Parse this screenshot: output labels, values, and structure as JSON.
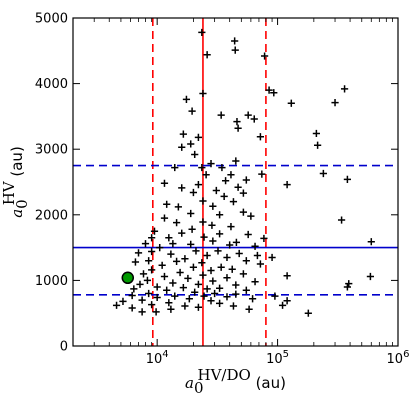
{
  "chart_data": {
    "type": "scatter",
    "title": "",
    "xlabel": {
      "symbol": "a",
      "subscript": "0",
      "superscript": "HV/DO",
      "unit": "(au)"
    },
    "ylabel": {
      "symbol": "a",
      "subscript": "0",
      "superscript": "HV",
      "unit": "(au)"
    },
    "x_scale": "log",
    "xlim": [
      2000,
      1000000
    ],
    "ylim": [
      0,
      5000
    ],
    "x_tick_values": [
      10000,
      100000,
      1000000
    ],
    "x_tick_labels": [
      {
        "base": "10",
        "exp": "4"
      },
      {
        "base": "10",
        "exp": "5"
      },
      {
        "base": "10",
        "exp": "6"
      }
    ],
    "y_ticks": [
      0,
      1000,
      2000,
      3000,
      4000,
      5000
    ],
    "y_tick_labels": [
      "0",
      "1000",
      "2000",
      "3000",
      "4000",
      "5000"
    ],
    "grid": false,
    "colors": {
      "points": "#000000",
      "vertical_lines": "#ff0000",
      "horizontal_lines": "#0000cc",
      "highlight_fill": "#009900",
      "highlight_edge": "#000000"
    },
    "reference_lines": {
      "vertical": [
        {
          "x": 9200,
          "style": "dashed"
        },
        {
          "x": 24000,
          "style": "solid"
        },
        {
          "x": 80000,
          "style": "dashed"
        }
      ],
      "horizontal": [
        {
          "y": 780,
          "style": "dashed"
        },
        {
          "y": 1500,
          "style": "solid"
        },
        {
          "y": 2750,
          "style": "dashed"
        }
      ]
    },
    "highlight_point": {
      "x": 5700,
      "y": 1040
    },
    "points": [
      [
        23500,
        4780
      ],
      [
        44000,
        4650
      ],
      [
        26000,
        4440
      ],
      [
        78000,
        4420
      ],
      [
        85000,
        3900
      ],
      [
        93000,
        3860
      ],
      [
        44500,
        4510
      ],
      [
        17500,
        3760
      ],
      [
        19500,
        3580
      ],
      [
        24000,
        3850
      ],
      [
        34000,
        3520
      ],
      [
        57000,
        3520
      ],
      [
        360000,
        3920
      ],
      [
        130000,
        3700
      ],
      [
        300000,
        3710
      ],
      [
        46000,
        3420
      ],
      [
        64000,
        3460
      ],
      [
        16500,
        3230
      ],
      [
        47000,
        3320
      ],
      [
        210000,
        3240
      ],
      [
        22000,
        3180
      ],
      [
        72000,
        3190
      ],
      [
        215000,
        3060
      ],
      [
        19000,
        3080
      ],
      [
        16000,
        3030
      ],
      [
        20500,
        2920
      ],
      [
        45000,
        2820
      ],
      [
        23500,
        2720
      ],
      [
        28000,
        2780
      ],
      [
        34500,
        2720
      ],
      [
        14000,
        2720
      ],
      [
        25500,
        2610
      ],
      [
        41000,
        2610
      ],
      [
        74000,
        2620
      ],
      [
        380000,
        2540
      ],
      [
        240000,
        2630
      ],
      [
        11500,
        2480
      ],
      [
        37000,
        2520
      ],
      [
        55000,
        2530
      ],
      [
        16000,
        2410
      ],
      [
        22000,
        2460
      ],
      [
        31000,
        2370
      ],
      [
        47000,
        2420
      ],
      [
        120000,
        2460
      ],
      [
        20000,
        2340
      ],
      [
        36000,
        2280
      ],
      [
        52000,
        2330
      ],
      [
        24000,
        2210
      ],
      [
        12000,
        2160
      ],
      [
        29000,
        2130
      ],
      [
        43000,
        2200
      ],
      [
        15000,
        2120
      ],
      [
        19000,
        2020
      ],
      [
        52000,
        2040
      ],
      [
        33000,
        2000
      ],
      [
        60000,
        1980
      ],
      [
        340000,
        1920
      ],
      [
        11500,
        1950
      ],
      [
        14500,
        1880
      ],
      [
        24000,
        1890
      ],
      [
        28500,
        1840
      ],
      [
        41000,
        1820
      ],
      [
        19500,
        1780
      ],
      [
        9500,
        1750
      ],
      [
        16000,
        1720
      ],
      [
        33000,
        1710
      ],
      [
        57000,
        1700
      ],
      [
        24500,
        1660
      ],
      [
        12500,
        1650
      ],
      [
        77000,
        1640
      ],
      [
        9000,
        1650
      ],
      [
        29000,
        1600
      ],
      [
        600000,
        1590
      ],
      [
        45500,
        1580
      ],
      [
        13500,
        1560
      ],
      [
        8000,
        1560
      ],
      [
        19000,
        1550
      ],
      [
        40000,
        1540
      ],
      [
        65000,
        1520
      ],
      [
        10500,
        1500
      ],
      [
        21000,
        1450
      ],
      [
        32000,
        1450
      ],
      [
        9000,
        1440
      ],
      [
        7000,
        1420
      ],
      [
        13000,
        1400
      ],
      [
        26000,
        1380
      ],
      [
        48000,
        1410
      ],
      [
        17000,
        1330
      ],
      [
        38000,
        1350
      ],
      [
        68000,
        1380
      ],
      [
        90000,
        1350
      ],
      [
        8500,
        1300
      ],
      [
        14500,
        1290
      ],
      [
        23500,
        1270
      ],
      [
        55000,
        1300
      ],
      [
        6600,
        1280
      ],
      [
        11000,
        1230
      ],
      [
        20000,
        1200
      ],
      [
        34000,
        1200
      ],
      [
        72000,
        1250
      ],
      [
        9000,
        1160
      ],
      [
        28000,
        1150
      ],
      [
        42000,
        1170
      ],
      [
        15500,
        1120
      ],
      [
        7700,
        1100
      ],
      [
        24000,
        1080
      ],
      [
        52000,
        1100
      ],
      [
        120000,
        1070
      ],
      [
        11500,
        1060
      ],
      [
        38000,
        1040
      ],
      [
        18000,
        1030
      ],
      [
        590000,
        1060
      ],
      [
        8300,
        1000
      ],
      [
        29000,
        990
      ],
      [
        13500,
        960
      ],
      [
        65000,
        980
      ],
      [
        7200,
        940
      ],
      [
        22000,
        940
      ],
      [
        45000,
        930
      ],
      [
        390000,
        950
      ],
      [
        10000,
        900
      ],
      [
        16500,
        890
      ],
      [
        33000,
        880
      ],
      [
        6400,
        870
      ],
      [
        26000,
        870
      ],
      [
        380000,
        900
      ],
      [
        12000,
        850
      ],
      [
        20500,
        820
      ],
      [
        55000,
        850
      ],
      [
        8500,
        800
      ],
      [
        30000,
        800
      ],
      [
        45000,
        790
      ],
      [
        6200,
        770
      ],
      [
        14000,
        760
      ],
      [
        24500,
        760
      ],
      [
        38000,
        750
      ],
      [
        95000,
        760
      ],
      [
        10000,
        740
      ],
      [
        18500,
        720
      ],
      [
        62000,
        720
      ],
      [
        5200,
        680
      ],
      [
        7500,
        700
      ],
      [
        28000,
        690
      ],
      [
        120000,
        690
      ],
      [
        12500,
        660
      ],
      [
        33000,
        650
      ],
      [
        4600,
        620
      ],
      [
        9000,
        630
      ],
      [
        17000,
        610
      ],
      [
        43000,
        610
      ],
      [
        6200,
        580
      ],
      [
        22000,
        590
      ],
      [
        13000,
        560
      ],
      [
        58000,
        560
      ],
      [
        180000,
        500
      ],
      [
        9800,
        520
      ],
      [
        7500,
        520
      ],
      [
        110000,
        620
      ]
    ]
  }
}
